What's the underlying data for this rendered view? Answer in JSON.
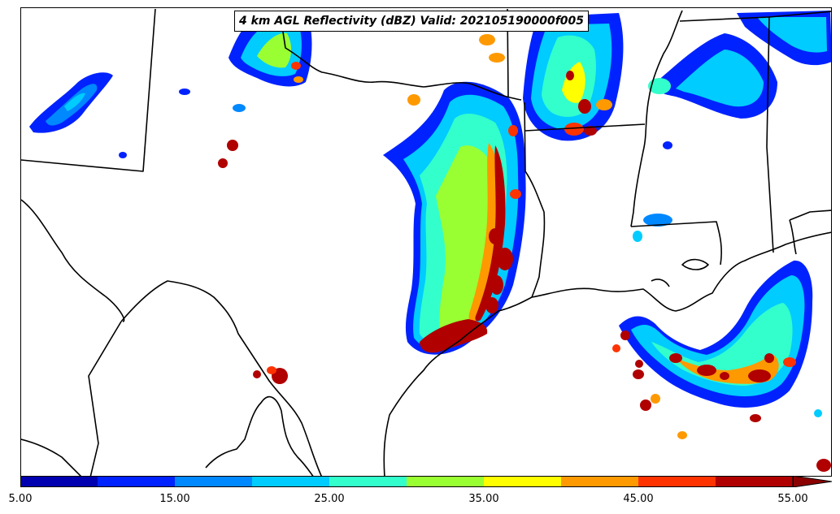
{
  "title": "4 km AGL Reflectivity (dBZ) Valid: 202105190000f005",
  "colorbar": {
    "colors": [
      "#0000b0",
      "#0022ff",
      "#0088ff",
      "#00ccff",
      "#33ffcc",
      "#99ff33",
      "#ffff00",
      "#ff9900",
      "#ff3300",
      "#b00000"
    ],
    "extend_color": "#8b0000",
    "tick_labels": [
      "5.00",
      "15.00",
      "25.00",
      "35.00",
      "45.00",
      "55.00"
    ],
    "range": [
      5,
      57.5
    ]
  },
  "chart_data": {
    "type": "heatmap",
    "title": "4 km AGL Reflectivity (dBZ) Valid: 202105190000f005",
    "variable": "Reflectivity",
    "units": "dBZ",
    "level": "4 km AGL",
    "valid": "202105190000f005",
    "levels": [
      5,
      10,
      15,
      20,
      25,
      30,
      35,
      40,
      45,
      50,
      55
    ],
    "colorbar_ticks": [
      5,
      15,
      25,
      35,
      45,
      55
    ],
    "extend": "max"
  }
}
